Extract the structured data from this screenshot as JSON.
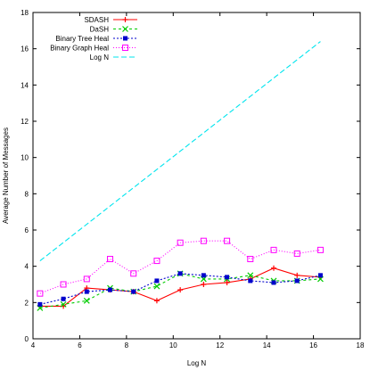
{
  "chart_data": {
    "type": "line",
    "xlabel": "Log N",
    "ylabel": "Average Number of Messages",
    "xlim": [
      4,
      18
    ],
    "ylim": [
      0,
      18
    ],
    "xticks": [
      4,
      6,
      8,
      10,
      12,
      14,
      16,
      18
    ],
    "yticks": [
      0,
      2,
      4,
      6,
      8,
      10,
      12,
      14,
      16,
      18
    ],
    "legend_position": "top-left",
    "series": [
      {
        "name": "SDASH",
        "color": "#ff0000",
        "marker": "plus",
        "dash": "",
        "x": [
          4.3,
          5.3,
          6.3,
          7.3,
          8.3,
          9.3,
          10.3,
          11.3,
          12.3,
          13.3,
          14.3,
          15.3,
          16.3
        ],
        "y": [
          1.8,
          1.8,
          2.8,
          2.7,
          2.6,
          2.1,
          2.7,
          3.0,
          3.1,
          3.3,
          3.9,
          3.5,
          3.4
        ]
      },
      {
        "name": "DaSH",
        "color": "#00cc00",
        "marker": "cross",
        "dash": "3,3",
        "x": [
          4.3,
          5.3,
          6.3,
          7.3,
          8.3,
          9.3,
          10.3,
          11.3,
          12.3,
          13.3,
          14.3,
          15.3,
          16.3
        ],
        "y": [
          1.7,
          1.9,
          2.1,
          2.8,
          2.6,
          2.9,
          3.6,
          3.3,
          3.3,
          3.5,
          3.2,
          3.2,
          3.3
        ]
      },
      {
        "name": "Binary Tree Heal",
        "color": "#0000cc",
        "marker": "square-filled",
        "dash": "2,2",
        "x": [
          4.3,
          5.3,
          6.3,
          7.3,
          8.3,
          9.3,
          10.3,
          11.3,
          12.3,
          13.3,
          14.3,
          15.3,
          16.3
        ],
        "y": [
          1.9,
          2.2,
          2.6,
          2.7,
          2.6,
          3.2,
          3.6,
          3.5,
          3.4,
          3.2,
          3.1,
          3.2,
          3.5
        ]
      },
      {
        "name": "Binary Graph Heal",
        "color": "#ff00ff",
        "marker": "square-open",
        "dash": "1,2",
        "x": [
          4.3,
          5.3,
          6.3,
          7.3,
          8.3,
          9.3,
          10.3,
          11.3,
          12.3,
          13.3,
          14.3,
          15.3,
          16.3
        ],
        "y": [
          2.5,
          3.0,
          3.3,
          4.4,
          3.6,
          4.3,
          5.3,
          5.4,
          5.4,
          4.4,
          4.9,
          4.7,
          4.9
        ]
      },
      {
        "name": "Log N",
        "color": "#00e5ee",
        "marker": "none",
        "dash": "6,3",
        "x": [
          4.3,
          16.3
        ],
        "y": [
          4.3,
          16.4
        ]
      }
    ]
  }
}
